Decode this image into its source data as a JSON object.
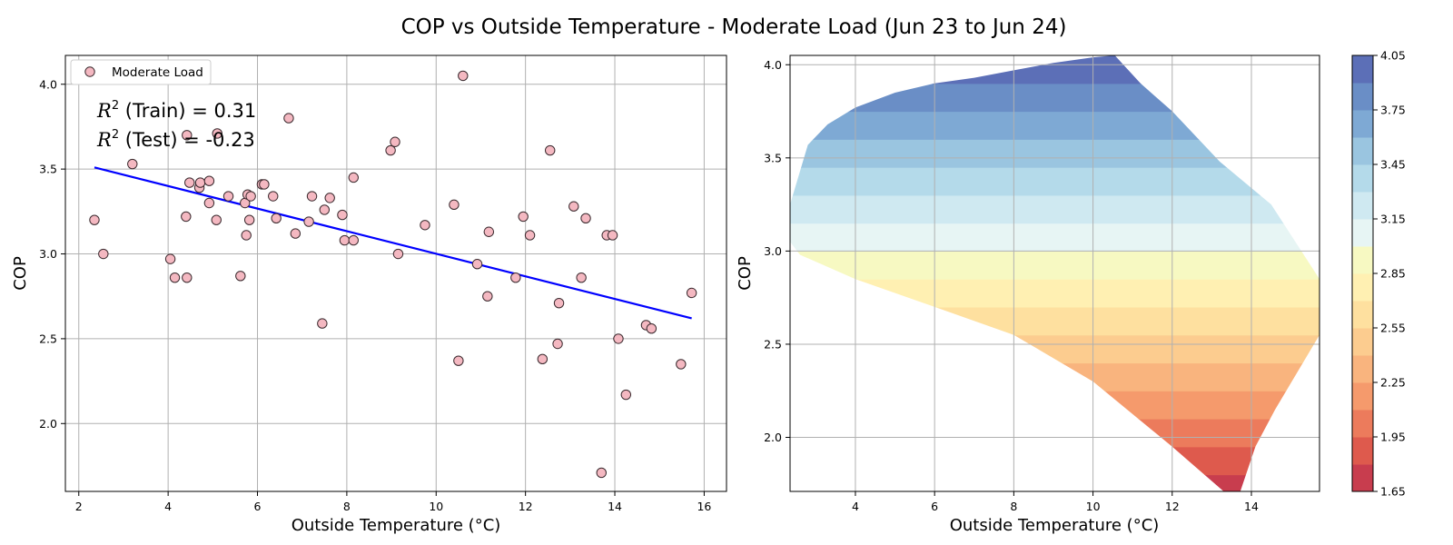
{
  "figure_title": "COP vs Outside Temperature - Moderate Load (Jun 23 to Jun 24)",
  "chart_data": [
    {
      "type": "scatter",
      "xlabel": "Outside Temperature (°C)",
      "ylabel": "COP",
      "xlim": [
        1.7,
        16.5
      ],
      "ylim": [
        1.6,
        4.17
      ],
      "xticks": [
        2,
        4,
        6,
        8,
        10,
        12,
        14,
        16
      ],
      "yticks": [
        2.0,
        2.5,
        3.0,
        3.5,
        4.0
      ],
      "grid": true,
      "legend": {
        "placement": "top-left",
        "entries": [
          "Moderate Load"
        ]
      },
      "annotations": {
        "r2_symbol": "R",
        "r2_exp": "2",
        "train_text": " (Train) = 0.31",
        "test_text": " (Test) = -0.23"
      },
      "colors": {
        "marker_fill": "#f4b8c1",
        "marker_edge": "#3a2a2e",
        "fit_line": "#0000ff"
      },
      "series": [
        {
          "name": "Moderate Load",
          "points": [
            [
              2.35,
              3.2
            ],
            [
              2.55,
              3.0
            ],
            [
              3.2,
              3.53
            ],
            [
              4.05,
              2.97
            ],
            [
              4.15,
              2.86
            ],
            [
              4.4,
              3.22
            ],
            [
              4.42,
              2.86
            ],
            [
              4.42,
              3.7
            ],
            [
              4.48,
              3.42
            ],
            [
              4.7,
              3.39
            ],
            [
              4.72,
              3.42
            ],
            [
              4.92,
              3.43
            ],
            [
              4.92,
              3.3
            ],
            [
              5.08,
              3.2
            ],
            [
              5.1,
              3.71
            ],
            [
              5.35,
              3.34
            ],
            [
              5.62,
              2.87
            ],
            [
              5.72,
              3.3
            ],
            [
              5.75,
              3.11
            ],
            [
              5.78,
              3.35
            ],
            [
              5.82,
              3.2
            ],
            [
              5.85,
              3.34
            ],
            [
              6.1,
              3.41
            ],
            [
              6.15,
              3.41
            ],
            [
              6.35,
              3.34
            ],
            [
              6.42,
              3.21
            ],
            [
              6.7,
              3.8
            ],
            [
              6.85,
              3.12
            ],
            [
              7.15,
              3.19
            ],
            [
              7.22,
              3.34
            ],
            [
              7.45,
              2.59
            ],
            [
              7.5,
              3.26
            ],
            [
              7.62,
              3.33
            ],
            [
              7.9,
              3.23
            ],
            [
              7.95,
              3.08
            ],
            [
              8.15,
              3.08
            ],
            [
              8.15,
              3.45
            ],
            [
              8.98,
              3.61
            ],
            [
              9.08,
              3.66
            ],
            [
              9.15,
              3.0
            ],
            [
              9.75,
              3.17
            ],
            [
              10.4,
              3.29
            ],
            [
              10.5,
              2.37
            ],
            [
              10.6,
              4.05
            ],
            [
              10.92,
              2.94
            ],
            [
              11.15,
              2.75
            ],
            [
              11.18,
              3.13
            ],
            [
              11.78,
              2.86
            ],
            [
              11.95,
              3.22
            ],
            [
              12.1,
              3.11
            ],
            [
              12.38,
              2.38
            ],
            [
              12.55,
              3.61
            ],
            [
              12.72,
              2.47
            ],
            [
              12.75,
              2.71
            ],
            [
              13.08,
              3.28
            ],
            [
              13.25,
              2.86
            ],
            [
              13.35,
              3.21
            ],
            [
              13.7,
              1.71
            ],
            [
              13.82,
              3.11
            ],
            [
              13.95,
              3.11
            ],
            [
              14.08,
              2.5
            ],
            [
              14.25,
              2.17
            ],
            [
              14.7,
              2.58
            ],
            [
              14.82,
              2.56
            ],
            [
              15.48,
              2.35
            ],
            [
              15.72,
              2.77
            ]
          ]
        }
      ],
      "fit_line": {
        "x": [
          2.35,
          15.72
        ],
        "y": [
          3.51,
          2.62
        ]
      }
    },
    {
      "type": "contour",
      "xlabel": "Outside Temperature (°C)",
      "ylabel": "COP",
      "xlim": [
        2.35,
        15.72
      ],
      "ylim": [
        1.71,
        4.05
      ],
      "xticks": [
        4,
        6,
        8,
        10,
        12,
        14
      ],
      "yticks": [
        2.0,
        2.5,
        3.0,
        3.5,
        4.0
      ],
      "grid": true,
      "colorbar": {
        "levels": [
          1.65,
          1.8,
          1.95,
          2.1,
          2.25,
          2.4,
          2.55,
          2.7,
          2.85,
          3.0,
          3.15,
          3.3,
          3.45,
          3.6,
          3.75,
          3.9,
          4.05
        ],
        "tick_labels": [
          "1.65",
          "1.95",
          "2.25",
          "2.55",
          "2.85",
          "3.15",
          "3.45",
          "3.75",
          "4.05"
        ],
        "tick_values": [
          1.65,
          1.95,
          2.25,
          2.55,
          2.85,
          3.15,
          3.45,
          3.75,
          4.05
        ],
        "colors": [
          "#c83d4e",
          "#de5a4d",
          "#ec7b5c",
          "#f59a6c",
          "#f9b47e",
          "#fccc8f",
          "#fee09f",
          "#fff0b2",
          "#f7f9c2",
          "#e7f5f4",
          "#cfe9f1",
          "#b4daea",
          "#9ac5e0",
          "#7ea9d4",
          "#6a8ec6",
          "#5c6fb7"
        ]
      },
      "boundary": [
        [
          2.35,
          3.25
        ],
        [
          2.8,
          3.57
        ],
        [
          3.3,
          3.68
        ],
        [
          4.0,
          3.77
        ],
        [
          5.0,
          3.85
        ],
        [
          6.0,
          3.9
        ],
        [
          7.0,
          3.93
        ],
        [
          8.0,
          3.97
        ],
        [
          9.0,
          4.01
        ],
        [
          10.0,
          4.04
        ],
        [
          10.55,
          4.05
        ],
        [
          11.2,
          3.9
        ],
        [
          12.0,
          3.75
        ],
        [
          13.2,
          3.48
        ],
        [
          14.5,
          3.25
        ],
        [
          15.72,
          2.85
        ],
        [
          15.72,
          2.55
        ],
        [
          15.3,
          2.4
        ],
        [
          14.6,
          2.15
        ],
        [
          14.1,
          1.95
        ],
        [
          13.72,
          1.71
        ],
        [
          13.3,
          1.71
        ],
        [
          12.0,
          1.95
        ],
        [
          10.0,
          2.3
        ],
        [
          8.0,
          2.55
        ],
        [
          6.0,
          2.7
        ],
        [
          4.0,
          2.85
        ],
        [
          2.6,
          2.98
        ],
        [
          2.35,
          3.05
        ]
      ]
    }
  ]
}
